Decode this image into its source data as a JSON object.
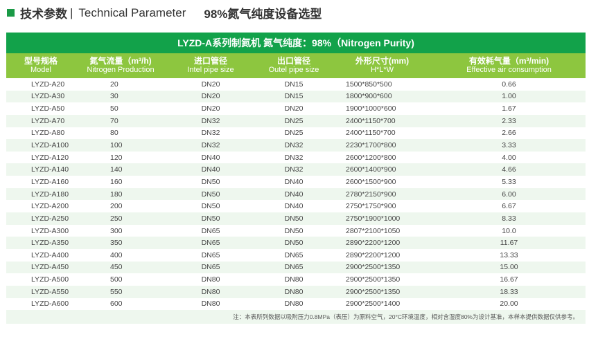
{
  "title": {
    "zh": "技术参数",
    "sep": "|",
    "en": "Technical Parameter",
    "sub": "98%氮气纯度设备选型"
  },
  "table": {
    "caption": "LYZD-A系列制氮机  氮气纯度：98%（Nitrogen Purity)",
    "headers": [
      {
        "zh": "型号规格",
        "en": "Model"
      },
      {
        "zh": "氮气流量（m³/h)",
        "en": "Nitrogen Production"
      },
      {
        "zh": "进口管径",
        "en": "Intel pipe size"
      },
      {
        "zh": "出口管径",
        "en": "Outel pipe size"
      },
      {
        "zh": "外形尺寸(mm)",
        "en": "H*L*W"
      },
      {
        "zh": "有效耗气量（m³/min)",
        "en": "Effective air consumption"
      }
    ],
    "rows": [
      [
        "LYZD-A20",
        "20",
        "DN20",
        "DN15",
        "1500*850*500",
        "0.66"
      ],
      [
        "LYZD-A30",
        "30",
        "DN20",
        "DN15",
        "1800*900*600",
        "1.00"
      ],
      [
        "LYZD-A50",
        "50",
        "DN20",
        "DN20",
        "1900*1000*600",
        "1.67"
      ],
      [
        "LYZD-A70",
        "70",
        "DN32",
        "DN25",
        "2400*1150*700",
        "2.33"
      ],
      [
        "LYZD-A80",
        "80",
        "DN32",
        "DN25",
        "2400*1150*700",
        "2.66"
      ],
      [
        "LYZD-A100",
        "100",
        "DN32",
        "DN32",
        "2230*1700*800",
        "3.33"
      ],
      [
        "LYZD-A120",
        "120",
        "DN40",
        "DN32",
        "2600*1200*800",
        "4.00"
      ],
      [
        "LYZD-A140",
        "140",
        "DN40",
        "DN32",
        "2600*1400*900",
        "4.66"
      ],
      [
        "LYZD-A160",
        "160",
        "DN50",
        "DN40",
        "2600*1500*900",
        "5.33"
      ],
      [
        "LYZD-A180",
        "180",
        "DN50",
        "DN40",
        "2780*2150*900",
        "6.00"
      ],
      [
        "LYZD-A200",
        "200",
        "DN50",
        "DN40",
        "2750*1750*900",
        "6.67"
      ],
      [
        "LYZD-A250",
        "250",
        "DN50",
        "DN50",
        "2750*1900*1000",
        "8.33"
      ],
      [
        "LYZD-A300",
        "300",
        "DN65",
        "DN50",
        "2807*2100*1050",
        "10.0"
      ],
      [
        "LYZD-A350",
        "350",
        "DN65",
        "DN50",
        "2890*2200*1200",
        "11.67"
      ],
      [
        "LYZD-A400",
        "400",
        "DN65",
        "DN65",
        "2890*2200*1200",
        "13.33"
      ],
      [
        "LYZD-A450",
        "450",
        "DN65",
        "DN65",
        "2900*2500*1350",
        "15.00"
      ],
      [
        "LYZD-A500",
        "500",
        "DN80",
        "DN80",
        "2900*2500*1350",
        "16.67"
      ],
      [
        "LYZD-A550",
        "550",
        "DN80",
        "DN80",
        "2900*2500*1350",
        "18.33"
      ],
      [
        "LYZD-A600",
        "600",
        "DN80",
        "DN80",
        "2900*2500*1400",
        "20.00"
      ]
    ],
    "note": "注：本表所列数据以吸附压力0.8MPa（表压）为原料空气，20°C环境温度，相对含湿度80%为设计基准，本样本提供数据仅供参考。"
  },
  "colors": {
    "caption_bg": "#12a24a",
    "header_bg": "#8dc63f",
    "stripe": "#eef7ee"
  }
}
